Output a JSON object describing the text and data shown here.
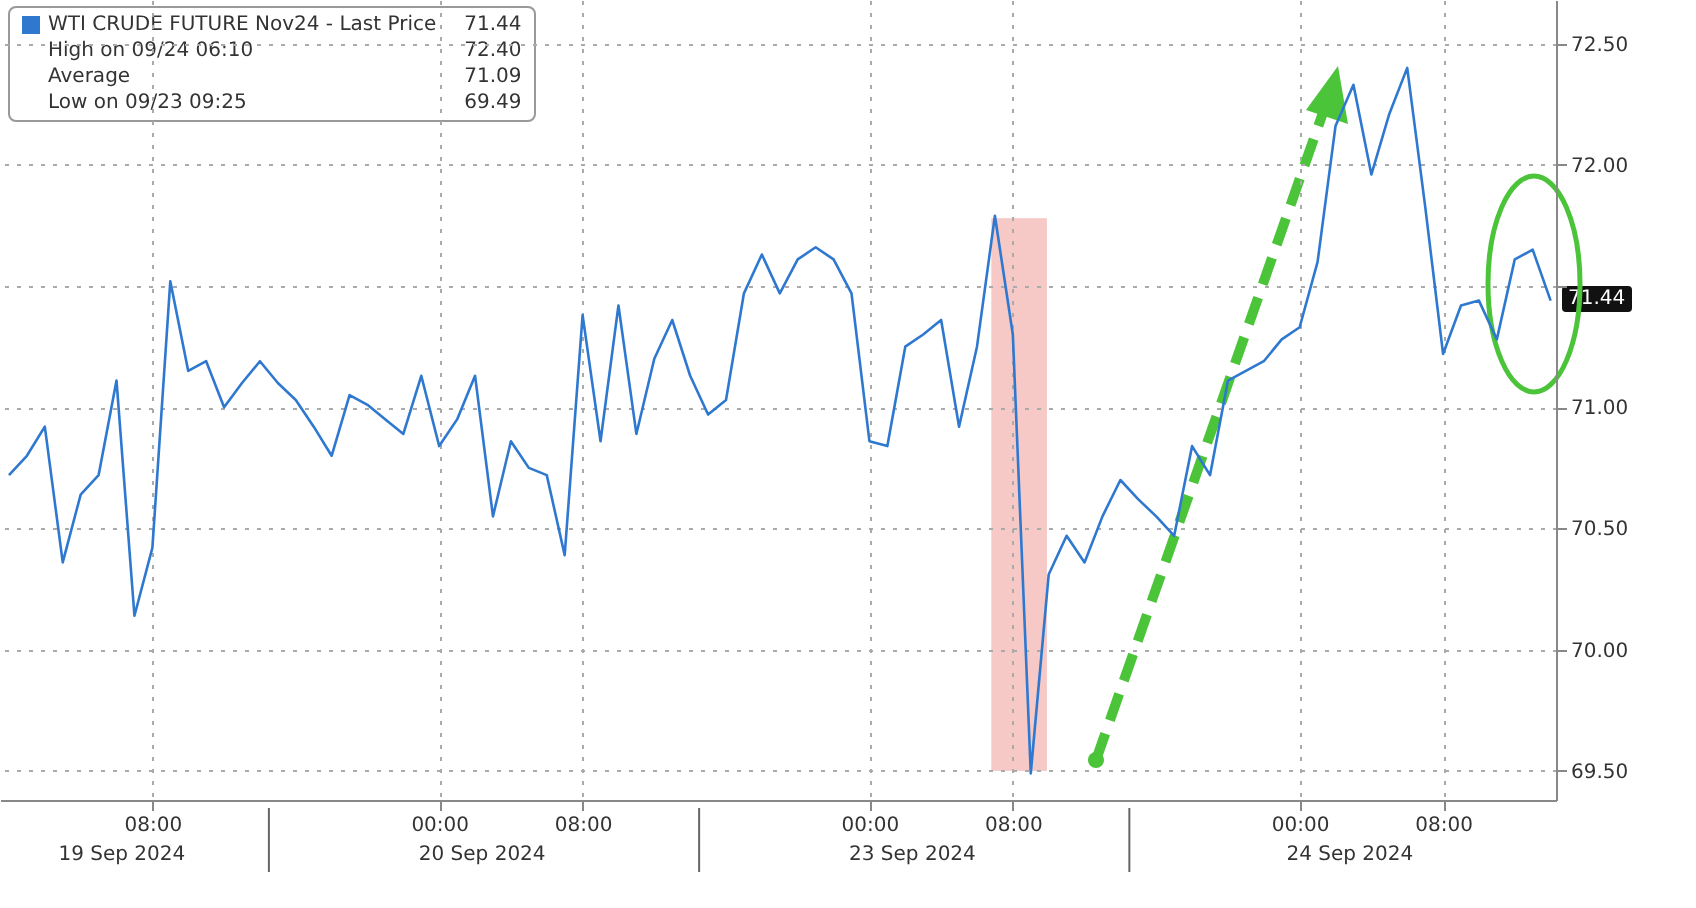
{
  "chart_data": {
    "type": "line",
    "legend": "top left",
    "grid": true,
    "marker": "none",
    "line_style": "solid",
    "categories": [
      null,
      null,
      null,
      null,
      null,
      null,
      null,
      null,
      "08:00",
      null,
      null,
      null,
      null,
      null,
      null,
      null,
      null,
      null,
      null,
      null,
      null,
      null,
      null,
      null,
      "00:00",
      null,
      null,
      null,
      null,
      null,
      null,
      null,
      "08:00",
      null,
      null,
      null,
      null,
      null,
      null,
      null,
      null,
      null,
      null,
      null,
      null,
      null,
      null,
      null,
      "00:00",
      null,
      null,
      null,
      null,
      null,
      null,
      null,
      "08:00",
      null,
      null,
      null,
      null,
      null,
      null,
      null,
      null,
      null,
      null,
      null,
      null,
      null,
      null,
      null,
      "00:00",
      null,
      null,
      null,
      null,
      null,
      null,
      null,
      "08:00",
      null,
      null,
      null,
      null,
      null,
      null
    ],
    "series": [
      {
        "name": "WTI CRUDE FUTURE Nov24 - Last Price",
        "color": "#2f78d0",
        "values": [
          70.72,
          70.8,
          70.92,
          70.36,
          70.64,
          70.72,
          71.11,
          70.14,
          70.42,
          71.52,
          71.15,
          71.19,
          71.0,
          71.1,
          71.19,
          71.1,
          71.03,
          70.92,
          70.8,
          71.05,
          71.01,
          70.95,
          70.89,
          71.13,
          70.84,
          70.95,
          71.13,
          70.55,
          70.86,
          70.75,
          70.72,
          70.39,
          71.38,
          70.86,
          71.42,
          70.89,
          71.2,
          71.36,
          71.13,
          70.97,
          71.03,
          71.47,
          71.63,
          71.47,
          71.61,
          71.66,
          71.61,
          71.47,
          70.86,
          70.84,
          71.25,
          71.3,
          71.36,
          70.92,
          71.25,
          71.79,
          71.3,
          69.49,
          70.31,
          70.47,
          70.36,
          70.55,
          70.7,
          70.62,
          70.55,
          70.47,
          70.84,
          70.72,
          71.11,
          71.15,
          71.19,
          71.28,
          71.33,
          71.6,
          72.16,
          72.33,
          71.96,
          72.21,
          72.4,
          71.83,
          71.22,
          71.42,
          71.44,
          71.28,
          71.61,
          71.65,
          71.44
        ]
      }
    ],
    "ylim": [
      69.38,
      72.68
    ],
    "yticks": [
      {
        "value": 69.5,
        "label": "69.50"
      },
      {
        "value": 70,
        "label": "70.00"
      },
      {
        "value": 70.5,
        "label": "70.50"
      },
      {
        "value": 71,
        "label": "71.00"
      },
      {
        "value": 71.5,
        "label": null
      },
      {
        "value": 72,
        "label": "72.00"
      },
      {
        "value": 72.5,
        "label": "72.50"
      }
    ],
    "annotations": [
      "71.44",
      "High on 09/24 06:10",
      "72.40",
      "Average",
      "71.09",
      "Low on 09/23 09:25",
      "69.49",
      "19 Sep 2024",
      "20 Sep 2024",
      "23 Sep 2024",
      "24 Sep 2024",
      {
        "text": "71.44",
        "y": 71.44
      }
    ]
  }
}
